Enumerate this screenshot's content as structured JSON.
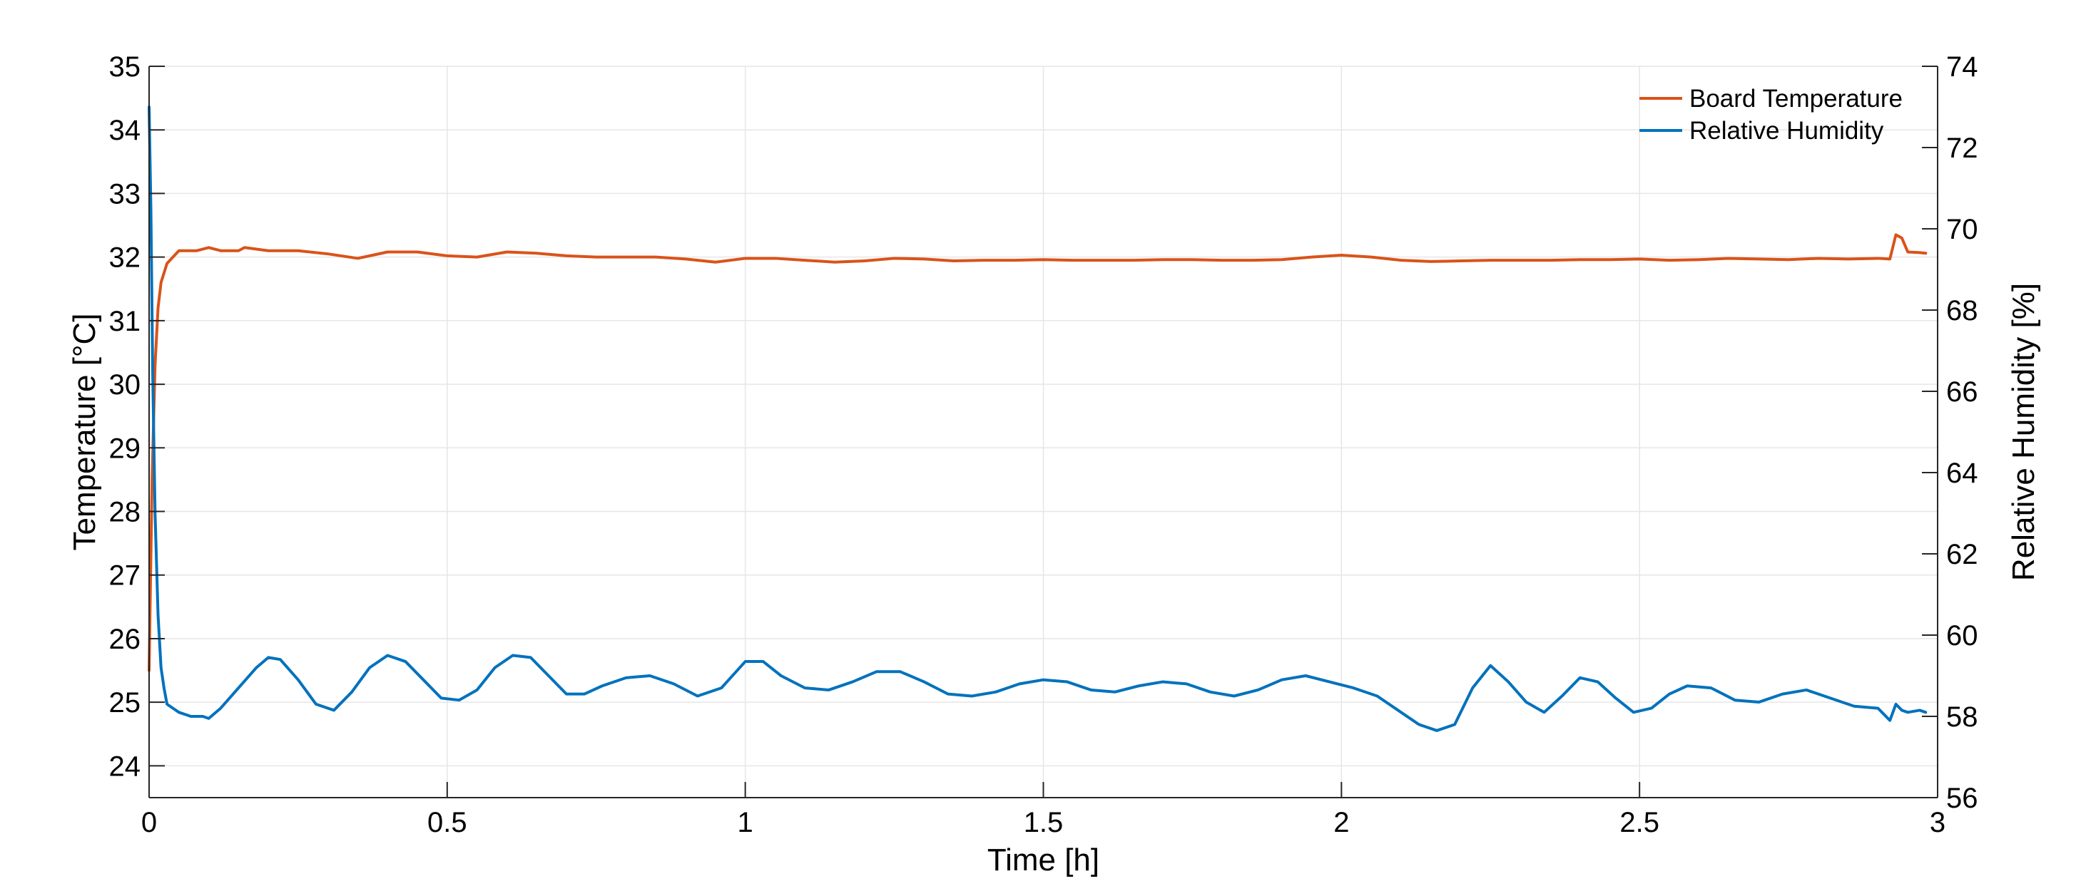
{
  "chart_data": {
    "type": "line",
    "title": "",
    "xlabel": "Time [h]",
    "ylabel_left": "Temperature [°C]",
    "ylabel_right": "Relative Humidity [%]",
    "xlim": [
      0,
      3
    ],
    "ylim_left": [
      23.5,
      35
    ],
    "ylim_right": [
      56,
      74
    ],
    "x_ticks": [
      "0",
      "0.5",
      "1",
      "1.5",
      "2",
      "2.5",
      "3"
    ],
    "y_left_ticks": [
      "24",
      "25",
      "26",
      "27",
      "28",
      "29",
      "30",
      "31",
      "32",
      "33",
      "34",
      "35"
    ],
    "y_right_ticks": [
      "56",
      "58",
      "60",
      "62",
      "64",
      "66",
      "68",
      "70",
      "72",
      "74"
    ],
    "grid": true,
    "legend_position": "top-right",
    "series": [
      {
        "name": "Board Temperature",
        "axis": "left",
        "color": "#D95319",
        "x": [
          0,
          0.005,
          0.01,
          0.015,
          0.02,
          0.03,
          0.04,
          0.05,
          0.06,
          0.08,
          0.1,
          0.12,
          0.15,
          0.16,
          0.2,
          0.25,
          0.3,
          0.35,
          0.4,
          0.45,
          0.5,
          0.55,
          0.6,
          0.65,
          0.7,
          0.75,
          0.8,
          0.85,
          0.9,
          0.95,
          1.0,
          1.05,
          1.1,
          1.15,
          1.2,
          1.25,
          1.3,
          1.35,
          1.4,
          1.45,
          1.5,
          1.55,
          1.6,
          1.65,
          1.7,
          1.75,
          1.8,
          1.85,
          1.9,
          1.95,
          2.0,
          2.05,
          2.1,
          2.15,
          2.2,
          2.25,
          2.3,
          2.35,
          2.4,
          2.45,
          2.5,
          2.55,
          2.6,
          2.65,
          2.7,
          2.75,
          2.8,
          2.85,
          2.9,
          2.92,
          2.93,
          2.94,
          2.95,
          2.97,
          2.98
        ],
        "y": [
          25.5,
          28.5,
          30.3,
          31.2,
          31.6,
          31.9,
          32.0,
          32.1,
          32.1,
          32.1,
          32.15,
          32.1,
          32.1,
          32.15,
          32.1,
          32.1,
          32.05,
          31.98,
          32.08,
          32.08,
          32.02,
          32.0,
          32.08,
          32.06,
          32.02,
          32.0,
          32.0,
          32.0,
          31.97,
          31.92,
          31.98,
          31.98,
          31.95,
          31.92,
          31.94,
          31.98,
          31.97,
          31.94,
          31.95,
          31.95,
          31.96,
          31.95,
          31.95,
          31.95,
          31.96,
          31.96,
          31.95,
          31.95,
          31.96,
          32.0,
          32.03,
          32.0,
          31.95,
          31.93,
          31.94,
          31.95,
          31.95,
          31.95,
          31.96,
          31.96,
          31.97,
          31.95,
          31.96,
          31.98,
          31.97,
          31.96,
          31.98,
          31.97,
          31.98,
          31.97,
          32.35,
          32.3,
          32.08,
          32.07,
          32.06
        ]
      },
      {
        "name": "Relative Humidity",
        "axis": "right",
        "color": "#0072BD",
        "x": [
          0,
          0.003,
          0.006,
          0.01,
          0.015,
          0.02,
          0.025,
          0.03,
          0.04,
          0.05,
          0.07,
          0.09,
          0.1,
          0.12,
          0.15,
          0.18,
          0.2,
          0.22,
          0.25,
          0.28,
          0.31,
          0.34,
          0.37,
          0.4,
          0.43,
          0.46,
          0.49,
          0.52,
          0.55,
          0.58,
          0.61,
          0.64,
          0.67,
          0.7,
          0.73,
          0.76,
          0.8,
          0.84,
          0.88,
          0.92,
          0.96,
          1.0,
          1.03,
          1.06,
          1.1,
          1.14,
          1.18,
          1.22,
          1.26,
          1.3,
          1.34,
          1.38,
          1.42,
          1.46,
          1.5,
          1.54,
          1.58,
          1.62,
          1.66,
          1.7,
          1.74,
          1.78,
          1.82,
          1.86,
          1.9,
          1.94,
          1.98,
          2.02,
          2.06,
          2.1,
          2.13,
          2.16,
          2.19,
          2.22,
          2.25,
          2.28,
          2.31,
          2.34,
          2.37,
          2.4,
          2.43,
          2.46,
          2.49,
          2.52,
          2.55,
          2.58,
          2.62,
          2.66,
          2.7,
          2.74,
          2.78,
          2.82,
          2.86,
          2.9,
          2.92,
          2.93,
          2.94,
          2.95,
          2.97,
          2.98
        ],
        "y": [
          73.0,
          70.5,
          66.5,
          63.0,
          60.5,
          59.2,
          58.7,
          58.3,
          58.2,
          58.1,
          58.0,
          58.0,
          57.95,
          58.2,
          58.7,
          59.2,
          59.45,
          59.4,
          58.9,
          58.3,
          58.15,
          58.6,
          59.2,
          59.5,
          59.35,
          58.9,
          58.45,
          58.4,
          58.65,
          59.2,
          59.5,
          59.45,
          59.0,
          58.55,
          58.55,
          58.75,
          58.95,
          59.0,
          58.8,
          58.5,
          58.7,
          59.35,
          59.35,
          59.0,
          58.7,
          58.65,
          58.85,
          59.1,
          59.1,
          58.85,
          58.55,
          58.5,
          58.6,
          58.8,
          58.9,
          58.85,
          58.65,
          58.6,
          58.75,
          58.85,
          58.8,
          58.6,
          58.5,
          58.65,
          58.9,
          59.0,
          58.85,
          58.7,
          58.5,
          58.1,
          57.8,
          57.65,
          57.8,
          58.7,
          59.25,
          58.85,
          58.35,
          58.1,
          58.5,
          58.95,
          58.85,
          58.45,
          58.1,
          58.2,
          58.55,
          58.75,
          58.7,
          58.4,
          58.35,
          58.55,
          58.65,
          58.45,
          58.25,
          58.2,
          57.9,
          58.3,
          58.15,
          58.1,
          58.15,
          58.1
        ]
      }
    ]
  }
}
